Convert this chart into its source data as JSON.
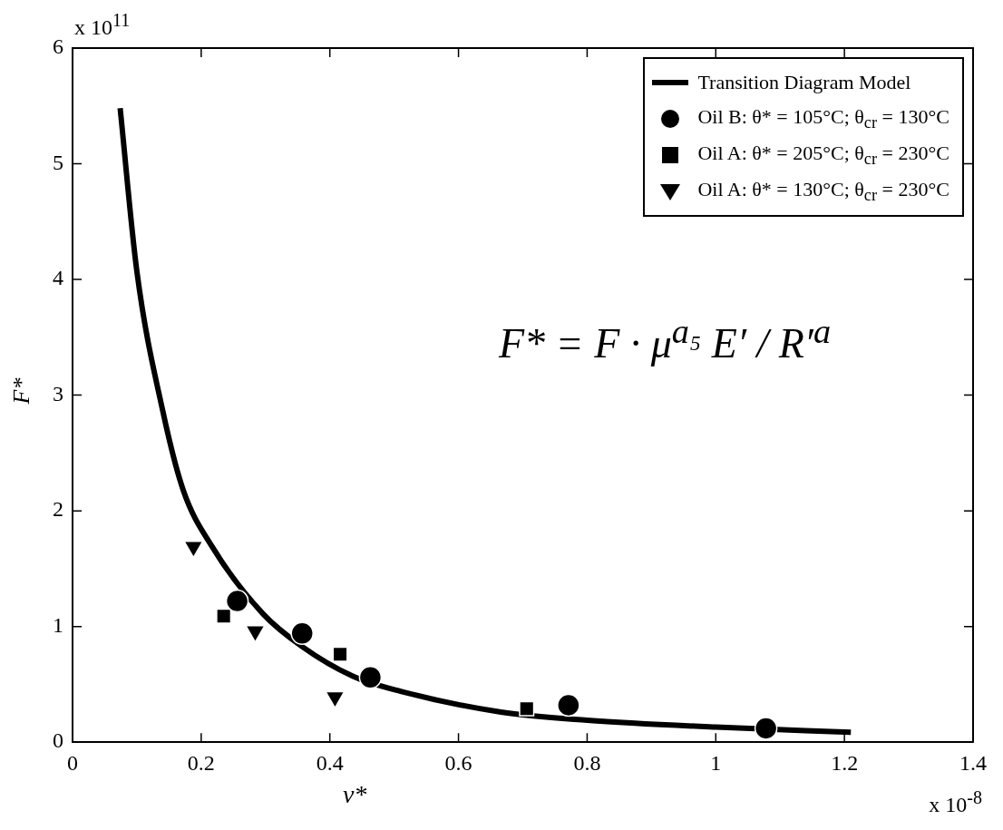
{
  "chart_data": {
    "type": "scatter",
    "xlabel": "ν*",
    "ylabel": "F*",
    "xlim": [
      0,
      1.4
    ],
    "xticks": [
      0,
      0.2,
      0.4,
      0.6,
      0.8,
      1,
      1.2,
      1.4
    ],
    "ylim": [
      0,
      6
    ],
    "yticks": [
      0,
      1,
      2,
      3,
      4,
      5,
      6
    ],
    "grid": false,
    "legend": "top right",
    "annotations": [
      "x 10$^{11}$",
      "x 10$^{-8}$",
      "F* = F · μ$^{a₅}$ E′ / R′$^{a}$"
    ],
    "series": [
      {
        "name": "Transition Diagram Model",
        "type": "line",
        "marker": "none",
        "color": "#000000",
        "x": [
          0.074,
          0.1,
          0.14,
          0.172,
          0.217,
          0.296,
          0.356,
          0.436,
          0.51,
          0.666,
          0.8,
          1.0,
          1.21
        ],
        "values": [
          5.48,
          4.07,
          2.87,
          2.18,
          1.69,
          1.11,
          0.83,
          0.57,
          0.44,
          0.26,
          0.19,
          0.13,
          0.085
        ]
      },
      {
        "name": "Oil B:  θ* = 105°C; θ$_{cr}$ = 130°C",
        "marker": "circle",
        "color": "#000000",
        "x": [
          0.256,
          0.357,
          0.463,
          0.771,
          1.078
        ],
        "values": [
          1.22,
          0.94,
          0.56,
          0.32,
          0.12
        ]
      },
      {
        "name": "Oil A:  θ* = 205°C; θ$_{cr}$ = 230°C",
        "marker": "square",
        "color": "#000000",
        "x": [
          0.235,
          0.416,
          0.706
        ],
        "values": [
          1.09,
          0.76,
          0.29
        ]
      },
      {
        "name": "Oil A:  θ* = 130°C; θ$_{cr}$ = 230°C",
        "marker": "triangle",
        "color": "#000000",
        "x": [
          0.188,
          0.284,
          0.408
        ],
        "values": [
          1.69,
          0.96,
          0.39
        ]
      }
    ]
  }
}
